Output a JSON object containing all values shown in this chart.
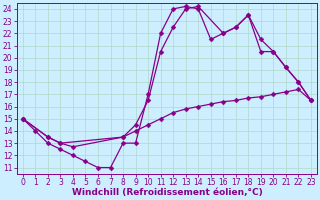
{
  "background_color": "#cceeff",
  "grid_color": "#b0d8c8",
  "line_color": "#880088",
  "xlabel": "Windchill (Refroidissement éolien,°C)",
  "xlim": [
    -0.5,
    23.5
  ],
  "ylim": [
    10.5,
    24.5
  ],
  "yticks": [
    11,
    12,
    13,
    14,
    15,
    16,
    17,
    18,
    19,
    20,
    21,
    22,
    23,
    24
  ],
  "xticks": [
    0,
    1,
    2,
    3,
    4,
    5,
    6,
    7,
    8,
    9,
    10,
    11,
    12,
    13,
    14,
    15,
    16,
    17,
    18,
    19,
    20,
    21,
    22,
    23
  ],
  "line1_x": [
    0,
    1,
    2,
    3,
    4,
    5,
    6,
    7,
    8,
    9,
    10,
    11,
    12,
    13,
    14,
    15,
    16,
    17,
    18,
    19,
    20,
    21,
    22,
    23
  ],
  "line1_y": [
    15,
    14,
    13,
    12.5,
    12,
    11.5,
    11,
    11,
    13,
    13,
    17,
    22,
    24,
    24.2,
    24,
    21.5,
    22,
    22.5,
    23.5,
    21.5,
    20.5,
    19.2,
    18,
    16.5
  ],
  "line2_x": [
    0,
    2,
    3,
    4,
    8,
    9,
    10,
    11,
    12,
    13,
    14,
    16,
    17,
    18,
    19,
    20,
    21,
    22,
    23
  ],
  "line2_y": [
    15,
    13.5,
    13,
    12.7,
    13.5,
    14.5,
    16.5,
    20.5,
    22.5,
    24,
    24.2,
    22,
    22.5,
    23.5,
    20.5,
    20.5,
    19.2,
    18,
    16.5
  ],
  "line3_x": [
    0,
    2,
    3,
    8,
    9,
    10,
    11,
    12,
    13,
    14,
    15,
    16,
    17,
    18,
    19,
    20,
    21,
    22,
    23
  ],
  "line3_y": [
    15,
    13.5,
    13,
    13.5,
    14,
    14.5,
    15,
    15.5,
    15.8,
    16,
    16.2,
    16.4,
    16.5,
    16.7,
    16.8,
    17,
    17.2,
    17.4,
    16.5
  ],
  "tick_fontsize": 5.5,
  "label_fontsize": 6.5
}
